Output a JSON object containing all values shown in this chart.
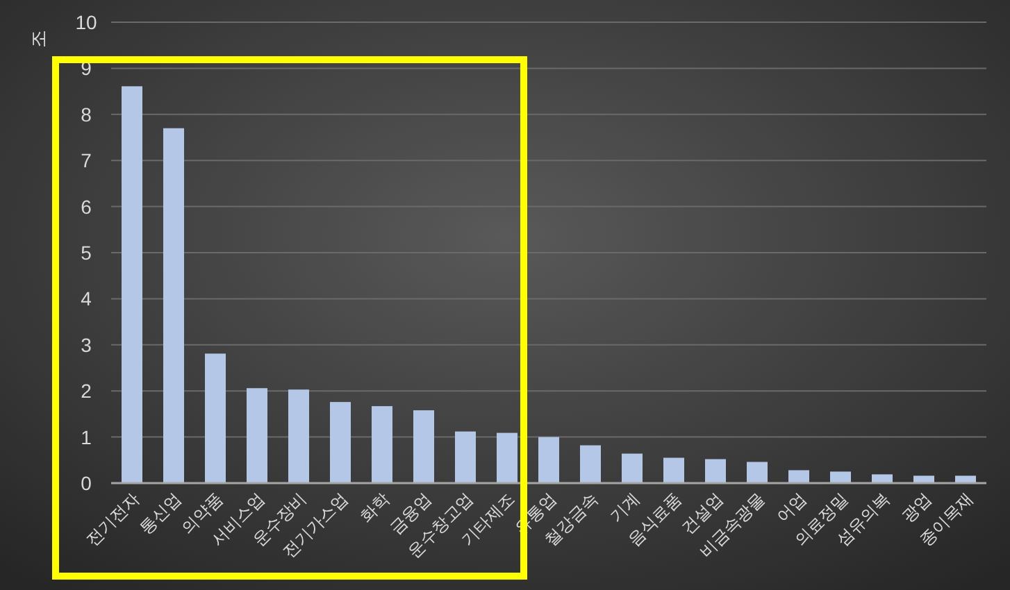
{
  "chart_data": {
    "type": "bar",
    "ylabel": "조",
    "categories": [
      "전기전자",
      "통신업",
      "의약품",
      "서비스업",
      "운수장비",
      "전기가스업",
      "화학",
      "금융업",
      "운수창고업",
      "기타제조",
      "유통업",
      "철강금속",
      "기계",
      "음식료품",
      "건설업",
      "비금속광물",
      "어업",
      "의료정밀",
      "섬유의복",
      "광업",
      "종이목재"
    ],
    "values": [
      8.61,
      7.7,
      2.81,
      2.06,
      2.03,
      1.76,
      1.67,
      1.58,
      1.12,
      1.09,
      1.0,
      0.82,
      0.64,
      0.55,
      0.52,
      0.46,
      0.28,
      0.25,
      0.19,
      0.16,
      0.16
    ],
    "color": "#b4c7e7",
    "ylim": [
      0,
      10
    ],
    "yticks": [
      0,
      1,
      2,
      3,
      4,
      5,
      6,
      7,
      8,
      9,
      10
    ],
    "grid": "y"
  }
}
